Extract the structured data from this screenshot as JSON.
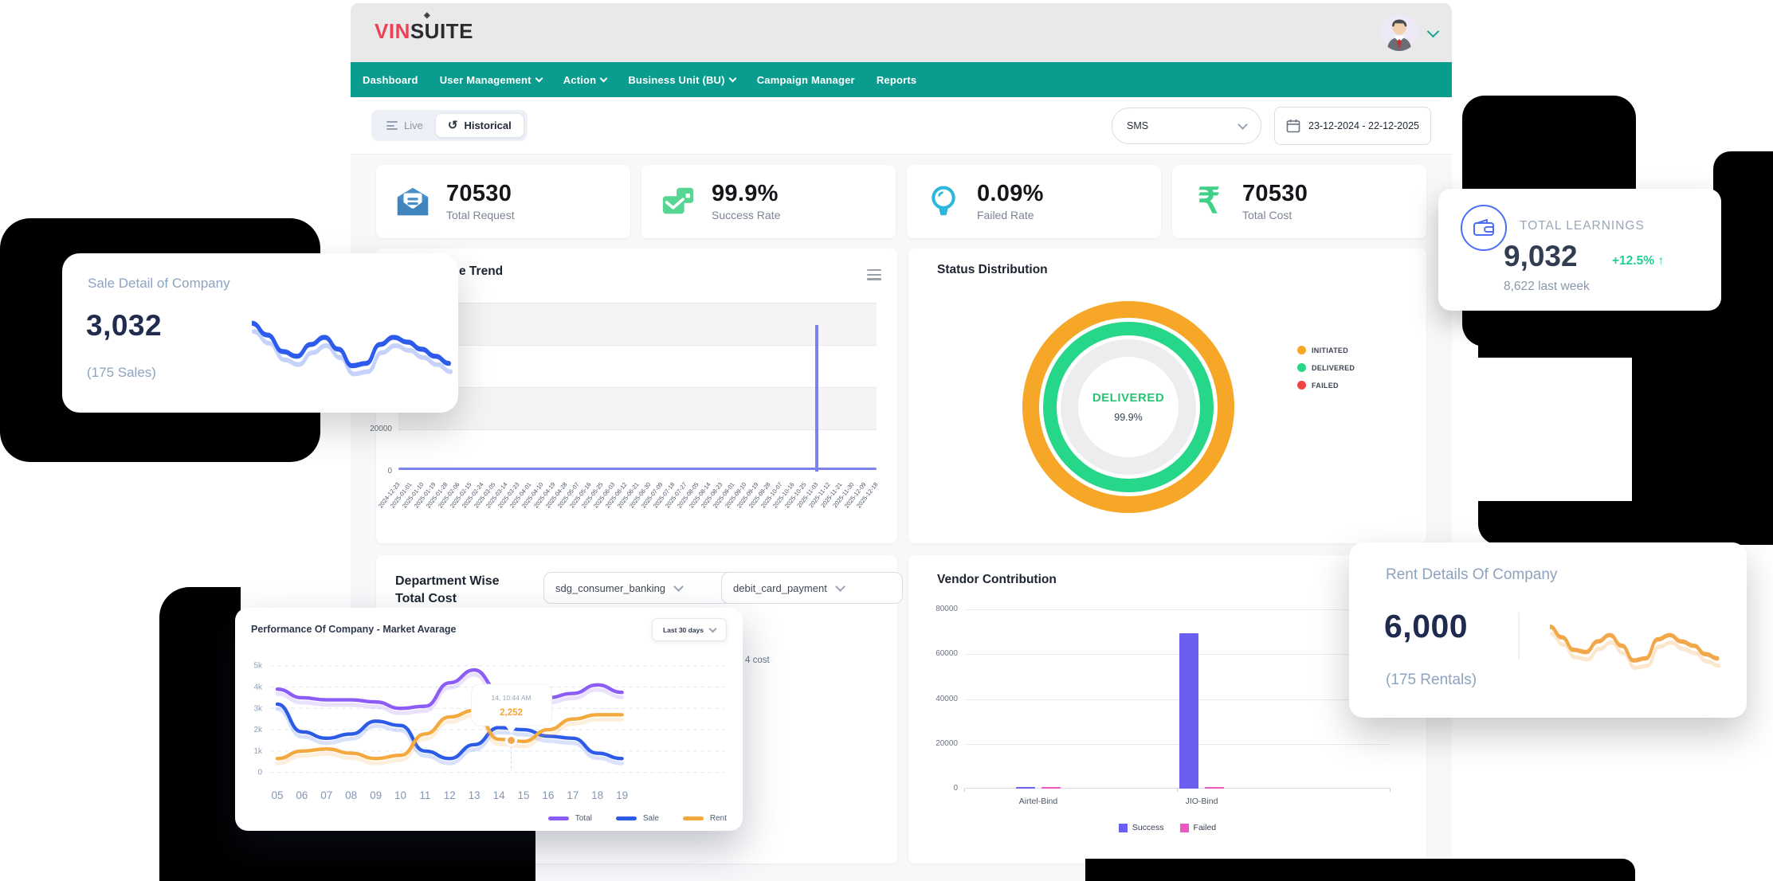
{
  "header": {
    "logo": {
      "part1": "VIN",
      "part2": "SUITE",
      "diamond": "◈"
    }
  },
  "nav": {
    "items": [
      {
        "label": "Dashboard",
        "dropdown": false
      },
      {
        "label": "User Management",
        "dropdown": true
      },
      {
        "label": "Action",
        "dropdown": true
      },
      {
        "label": "Business Unit (BU)",
        "dropdown": true
      },
      {
        "label": "Campaign Manager",
        "dropdown": false
      },
      {
        "label": "Reports",
        "dropdown": false
      }
    ]
  },
  "toolbar": {
    "live_label": "Live",
    "historical_label": "Historical",
    "channel_value": "SMS",
    "date_range": "23-12-2024 - 22-12-2025"
  },
  "kpis": [
    {
      "value": "70530",
      "label": "Total Request",
      "icon": "mail-icon",
      "color": "#4a8fc7"
    },
    {
      "value": "99.9%",
      "label": "Success Rate",
      "icon": "message-success-icon",
      "color": "#57d593"
    },
    {
      "value": "0.09%",
      "label": "Failed Rate",
      "icon": "bulb-icon",
      "color": "#2bb7dc"
    },
    {
      "value": "70530",
      "label": "Total Cost",
      "icon": "rupee-icon",
      "color": "#3fd187"
    }
  ],
  "panels": {
    "trend": {
      "title_visible": "e Trend"
    },
    "status": {
      "title": "Status Distribution",
      "center_label": "DELIVERED",
      "center_value": "99.9%",
      "legend": [
        {
          "label": "INITIATED",
          "color": "#f6a728"
        },
        {
          "label": "DELIVERED",
          "color": "#27d789"
        },
        {
          "label": "FAILED",
          "color": "#ef4444"
        }
      ]
    },
    "department": {
      "title_line1": "Department Wise",
      "title_line2": "Total Cost",
      "filter1": "sdg_consumer_banking",
      "filter2": "debit_card_payment",
      "fragment": "4 cost"
    },
    "vendor": {
      "title": "Vendor Contribution"
    }
  },
  "floating": {
    "sale": {
      "title": "Sale Detail of Company",
      "value": "3,032",
      "subtitle": "(175 Sales)"
    },
    "learnings": {
      "title": "TOTAL LEARNINGS",
      "value": "9,032",
      "delta": "+12.5%",
      "arrow": "↑",
      "subtitle": "8,622 last week"
    },
    "performance": {
      "title": "Performance Of Company - Market Avarage",
      "range": "Last 30 days"
    },
    "rent": {
      "title": "Rent Details Of Company",
      "value": "6,000",
      "subtitle": "(175 Rentals)"
    }
  },
  "chart_data": [
    {
      "id": "trend",
      "type": "bar",
      "x": [
        "2024-12-23",
        "2025-01-01",
        "2025-01-10",
        "2025-01-19",
        "2025-01-28",
        "2025-02-06",
        "2025-02-15",
        "2025-02-24",
        "2025-03-05",
        "2025-03-14",
        "2025-03-23",
        "2025-04-01",
        "2025-04-10",
        "2025-04-19",
        "2025-04-28",
        "2025-05-07",
        "2025-05-16",
        "2025-05-25",
        "2025-06-03",
        "2025-06-12",
        "2025-06-21",
        "2025-06-30",
        "2025-07-09",
        "2025-07-18",
        "2025-07-27",
        "2025-08-05",
        "2025-08-14",
        "2025-08-23",
        "2025-09-01",
        "2025-09-10",
        "2025-09-19",
        "2025-09-28",
        "2025-10-07",
        "2025-10-16",
        "2025-10-25",
        "2025-11-03",
        "2025-11-12",
        "2025-11-21",
        "2025-11-30",
        "2025-12-09",
        "2025-12-18"
      ],
      "values": [
        200,
        200,
        200,
        200,
        200,
        200,
        200,
        200,
        200,
        200,
        200,
        200,
        200,
        200,
        200,
        200,
        200,
        200,
        200,
        200,
        200,
        200,
        200,
        200,
        200,
        200,
        200,
        200,
        200,
        200,
        200,
        200,
        200,
        200,
        200,
        69300,
        200,
        200,
        200,
        200,
        200
      ],
      "ylim": [
        0,
        80000
      ],
      "yticks": [
        0,
        20000,
        40000,
        60000,
        80000
      ],
      "color": "#7b82ee"
    },
    {
      "id": "status",
      "type": "pie",
      "rings": [
        {
          "label": "INITIATED",
          "value": 100,
          "color": "#f6a728"
        },
        {
          "label": "DELIVERED",
          "value": 99.9,
          "color": "#27d789"
        },
        {
          "label": "FAILED",
          "value": 0.09,
          "color": "#ef4444"
        }
      ],
      "center_label": "DELIVERED",
      "center_value": "99.9%"
    },
    {
      "id": "performance",
      "type": "line",
      "x": [
        "05",
        "06",
        "07",
        "08",
        "09",
        "10",
        "11",
        "12",
        "13",
        "14",
        "15",
        "16",
        "17",
        "18",
        "19"
      ],
      "series": [
        {
          "name": "Total",
          "color": "#8b5cf6",
          "values": [
            3900,
            3500,
            3400,
            3400,
            3300,
            3000,
            3100,
            4200,
            4800,
            3850,
            3600,
            3500,
            3700,
            4100,
            3750
          ]
        },
        {
          "name": "Sale",
          "color": "#2c5be8",
          "values": [
            3200,
            1900,
            1600,
            1800,
            2400,
            2200,
            1000,
            650,
            1300,
            2100,
            2000,
            1700,
            1600,
            900,
            650
          ]
        },
        {
          "name": "Rent",
          "color": "#f3a93d",
          "values": [
            650,
            1000,
            1100,
            900,
            650,
            800,
            1800,
            2600,
            2900,
            1550,
            1450,
            2000,
            2500,
            2700,
            2700
          ]
        }
      ],
      "ylim": [
        0,
        5000
      ],
      "ytick_labels": [
        "0",
        "1k",
        "2k",
        "3k",
        "4k",
        "5k"
      ],
      "tooltip": {
        "time": "14, 10:44 AM",
        "value": "2,252",
        "series": "Rent",
        "x_index": 9.5,
        "y_value": 1500
      }
    },
    {
      "id": "vendor",
      "type": "bar",
      "categories": [
        "Airtel-Bind",
        "JIO-Bind"
      ],
      "series": [
        {
          "name": "Success",
          "color": "#6a5ff0",
          "values": [
            400,
            69300
          ]
        },
        {
          "name": "Failed",
          "color": "#ee56c3",
          "values": [
            700,
            500
          ]
        }
      ],
      "ylim": [
        0,
        80000
      ],
      "yticks": [
        0,
        20000,
        40000,
        60000,
        80000
      ]
    },
    {
      "id": "sale-sparkline",
      "type": "line",
      "color": "#2d5cec",
      "points": [
        [
          0,
          16
        ],
        [
          18,
          26
        ],
        [
          36,
          40
        ],
        [
          52,
          44
        ],
        [
          68,
          34
        ],
        [
          84,
          28
        ],
        [
          100,
          38
        ],
        [
          116,
          52
        ],
        [
          132,
          50
        ],
        [
          148,
          34
        ],
        [
          164,
          28
        ],
        [
          180,
          32
        ],
        [
          196,
          38
        ],
        [
          212,
          44
        ],
        [
          228,
          50
        ]
      ]
    },
    {
      "id": "rent-sparkline",
      "type": "line",
      "color": "#f2a84a",
      "points": [
        [
          0,
          18
        ],
        [
          16,
          28
        ],
        [
          32,
          40
        ],
        [
          48,
          42
        ],
        [
          64,
          32
        ],
        [
          80,
          26
        ],
        [
          96,
          36
        ],
        [
          112,
          50
        ],
        [
          128,
          48
        ],
        [
          144,
          30
        ],
        [
          160,
          26
        ],
        [
          176,
          32
        ],
        [
          192,
          36
        ],
        [
          208,
          44
        ],
        [
          224,
          48
        ]
      ]
    }
  ]
}
